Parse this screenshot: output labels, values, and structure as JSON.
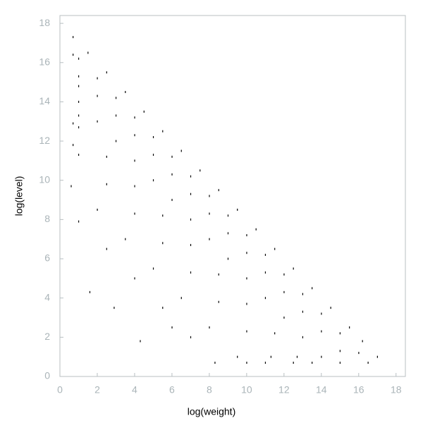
{
  "chart_data": {
    "type": "scatter",
    "xlabel": "log(weight)",
    "ylabel": "log(level)",
    "color": "#000000",
    "xlim": [
      0,
      18.5
    ],
    "ylim": [
      0,
      18.4
    ],
    "xticks": [
      0,
      2,
      4,
      6,
      8,
      10,
      12,
      14,
      16,
      18
    ],
    "yticks": [
      0,
      2,
      4,
      6,
      8,
      10,
      12,
      14,
      16,
      18
    ],
    "x": [
      0.7,
      1.5,
      2.5,
      3.5,
      4.5,
      5.5,
      6.5,
      7.5,
      8.5,
      9.5,
      10.5,
      11.5,
      12.5,
      13.5,
      14.5,
      15.5,
      16.2,
      17,
      1,
      2,
      3,
      4,
      5,
      6,
      7,
      8,
      9,
      10,
      11,
      12,
      13,
      14,
      15,
      16,
      1,
      2,
      3,
      4,
      5,
      6,
      7,
      8,
      9,
      10,
      11,
      12,
      13,
      14,
      15,
      1,
      2,
      3,
      4,
      5,
      6,
      7,
      8,
      9,
      10,
      11,
      12,
      13,
      14,
      1,
      2.5,
      4,
      5.5,
      7,
      8.5,
      10,
      11.5,
      12.7,
      1,
      2.5,
      4,
      5.5,
      7,
      8.5,
      10,
      11.3,
      0.6,
      2,
      3.5,
      5,
      6.5,
      8,
      9.5,
      1,
      2.5,
      4,
      5.5,
      7,
      8.3,
      10,
      11,
      12.5,
      13.5,
      15,
      16.5,
      0.7,
      1,
      1,
      0.7,
      0.7,
      1.6,
      4.3,
      2.9,
      6
    ],
    "values": [
      17.3,
      16.5,
      15.5,
      14.5,
      13.5,
      12.5,
      11.5,
      10.5,
      9.5,
      8.5,
      7.5,
      6.5,
      5.5,
      4.5,
      3.5,
      2.5,
      1.8,
      1,
      16.2,
      15.2,
      14.2,
      13.2,
      12.2,
      11.2,
      10.2,
      9.2,
      8.2,
      7.2,
      6.2,
      5.2,
      4.2,
      3.2,
      2.2,
      1.2,
      15.3,
      14.3,
      13.3,
      12.3,
      11.3,
      10.3,
      9.3,
      8.3,
      7.3,
      6.3,
      5.3,
      4.3,
      3.3,
      2.3,
      1.3,
      14,
      13,
      12,
      11,
      10,
      9,
      8,
      7,
      6,
      5,
      4,
      3,
      2,
      1,
      12.7,
      11.2,
      9.7,
      8.2,
      6.7,
      5.2,
      3.7,
      2.2,
      1,
      11.3,
      9.8,
      8.3,
      6.8,
      5.3,
      3.8,
      2.3,
      1,
      9.7,
      8.5,
      7,
      5.5,
      4,
      2.5,
      1,
      7.9,
      6.5,
      5,
      3.5,
      2,
      0.7,
      0.7,
      0.7,
      0.7,
      0.7,
      0.7,
      0.7,
      16.4,
      14.8,
      13.3,
      12.9,
      11.8,
      4.3,
      1.8,
      3.5,
      2.5
    ]
  }
}
